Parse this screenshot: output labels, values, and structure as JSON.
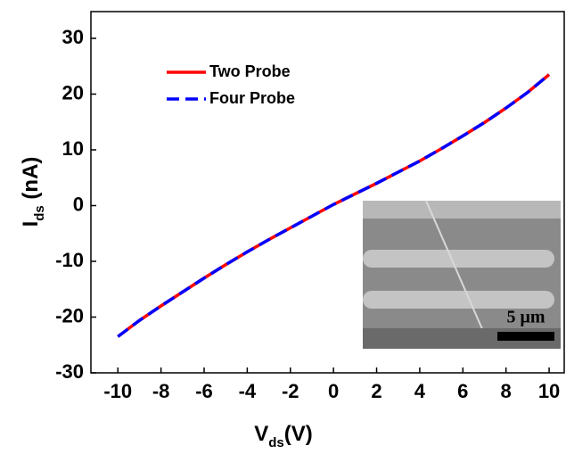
{
  "chart_data": {
    "type": "line",
    "x": [
      -10,
      -9,
      -8,
      -7,
      -6,
      -5,
      -4,
      -3,
      -2,
      -1,
      0,
      1,
      2,
      3,
      4,
      5,
      6,
      7,
      8,
      9,
      10
    ],
    "series": [
      {
        "name": "Two Probe",
        "color": "#ff0000",
        "dash": false,
        "values": [
          -23.5,
          -20.6,
          -18,
          -15.5,
          -13,
          -10.6,
          -8.3,
          -6.1,
          -4,
          -1.9,
          0.2,
          2.1,
          4,
          6,
          8,
          10.2,
          12.5,
          14.9,
          17.5,
          20.3,
          23.5
        ]
      },
      {
        "name": "Four Probe",
        "color": "#0000ff",
        "dash": true,
        "values": [
          -23.5,
          -20.6,
          -18,
          -15.5,
          -13,
          -10.6,
          -8.3,
          -6.1,
          -4,
          -1.9,
          0.2,
          2.1,
          4,
          6,
          8,
          10.2,
          12.5,
          14.9,
          17.5,
          20.3,
          23.5
        ]
      }
    ],
    "xlabel": [
      "V",
      "ds",
      "(V)"
    ],
    "ylabel": [
      "I",
      "ds",
      " (nA)"
    ],
    "xlim": [
      -11.25,
      10.7
    ],
    "ylim": [
      -30,
      34.8
    ],
    "xticks": [
      -10,
      -8,
      -6,
      -4,
      -2,
      0,
      2,
      4,
      6,
      8,
      10
    ],
    "yticks": [
      -30,
      -20,
      -10,
      0,
      10,
      20,
      30
    ],
    "legend": "upper left",
    "inset_scale_label": "5 μm"
  }
}
